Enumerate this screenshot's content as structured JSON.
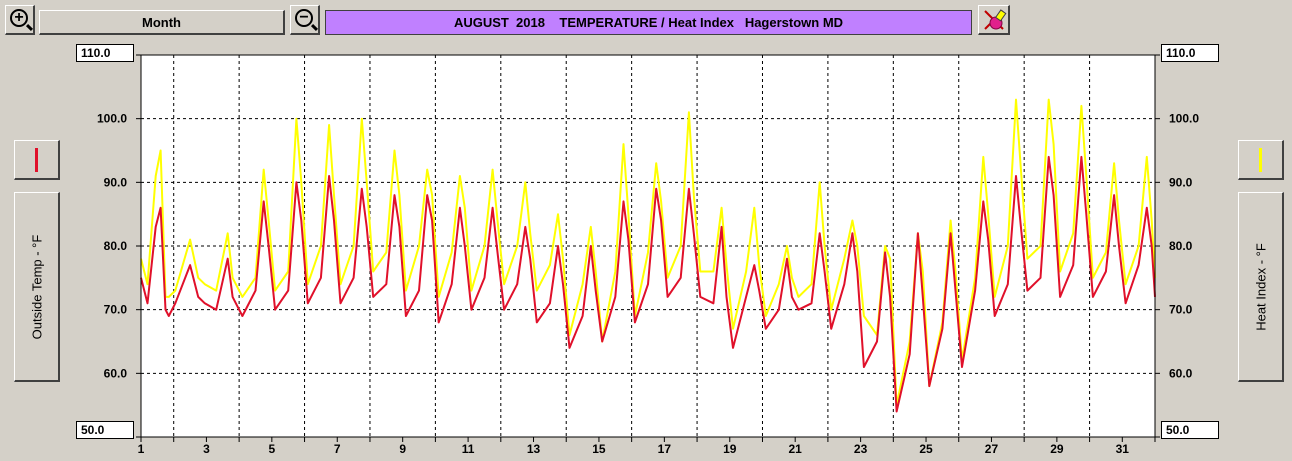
{
  "toolbar": {
    "range_label": "Month",
    "zoom_in": "+",
    "zoom_out": "−"
  },
  "title": "AUGUST  2018    TEMPERATURE / Heat Index   Hagerstown MD",
  "left_axis": {
    "label": "Outside Temp - °F",
    "legend_color": "#e0102a"
  },
  "right_axis": {
    "label": "Heat Index - °F",
    "legend_color": "#ffff00"
  },
  "ylabels": {
    "top": "110.0",
    "bottom": "50.0"
  },
  "chart_data": {
    "type": "line",
    "title": "AUGUST  2018    TEMPERATURE / Heat Index   Hagerstown MD",
    "ylabel": "Outside Temp - °F",
    "y2label": "Heat Index - °F",
    "ylim": [
      50,
      110
    ],
    "xlim": [
      1,
      32
    ],
    "y_ticks": [
      {
        "value": 110,
        "label": "110.0"
      },
      {
        "value": 100,
        "label": "100.0"
      },
      {
        "value": 90,
        "label": "90.0"
      },
      {
        "value": 80,
        "label": "80.0"
      },
      {
        "value": 70,
        "label": "70.0"
      },
      {
        "value": 60,
        "label": "60.0"
      },
      {
        "value": 50,
        "label": "50.0"
      }
    ],
    "x_tick_labels": [
      "1",
      "3",
      "5",
      "7",
      "9",
      "11",
      "13",
      "15",
      "17",
      "19",
      "21",
      "23",
      "25",
      "27",
      "29",
      "31"
    ],
    "grid": true,
    "series": [
      {
        "key": "heat",
        "color": "#ffff00",
        "x": [
          1,
          1.2,
          1.45,
          1.6,
          1.75,
          1.85,
          2.05,
          2.5,
          2.75,
          2.95,
          3.3,
          3.65,
          3.8,
          4.1,
          4.5,
          4.75,
          4.9,
          5.1,
          5.5,
          5.75,
          5.9,
          6.1,
          6.5,
          6.75,
          6.9,
          7.1,
          7.5,
          7.75,
          7.9,
          8.1,
          8.5,
          8.75,
          8.9,
          9.1,
          9.5,
          9.75,
          9.9,
          10.1,
          10.5,
          10.75,
          10.9,
          11.1,
          11.5,
          11.75,
          11.9,
          12.1,
          12.5,
          12.75,
          12.9,
          13.1,
          13.5,
          13.75,
          13.9,
          14.1,
          14.5,
          14.75,
          14.9,
          15.1,
          15.5,
          15.75,
          15.9,
          16.1,
          16.5,
          16.75,
          16.9,
          17.1,
          17.5,
          17.75,
          17.9,
          18.1,
          18.5,
          18.75,
          18.9,
          19.1,
          19.5,
          19.75,
          19.9,
          20.1,
          20.5,
          20.75,
          20.9,
          21.1,
          21.5,
          21.75,
          21.9,
          22.1,
          22.5,
          22.75,
          22.9,
          23.1,
          23.5,
          23.75,
          23.9,
          24.1,
          24.5,
          24.75,
          24.9,
          25.1,
          25.5,
          25.75,
          25.9,
          26.1,
          26.5,
          26.75,
          26.9,
          27.1,
          27.5,
          27.75,
          27.9,
          28.1,
          28.5,
          28.75,
          28.9,
          29.1,
          29.5,
          29.75,
          29.9,
          30.1,
          30.5,
          30.75,
          30.9,
          31.1,
          31.5,
          31.75,
          31.9,
          32
        ],
        "values": [
          78,
          74,
          91,
          95,
          72,
          72,
          73,
          81,
          75,
          74,
          73,
          82,
          75,
          72,
          75,
          92,
          84,
          73,
          76,
          100,
          90,
          74,
          80,
          99,
          88,
          74,
          80,
          100,
          90,
          76,
          79,
          95,
          88,
          73,
          80,
          92,
          88,
          72,
          79,
          91,
          86,
          73,
          80,
          92,
          84,
          74,
          80,
          90,
          82,
          73,
          77,
          85,
          78,
          66,
          74,
          83,
          76,
          65,
          76,
          96,
          85,
          69,
          79,
          93,
          87,
          75,
          80,
          101,
          88,
          76,
          76,
          86,
          77,
          67,
          76,
          86,
          77,
          69,
          74,
          80,
          75,
          72,
          74,
          90,
          80,
          70,
          78,
          84,
          80,
          69,
          66,
          80,
          78,
          55,
          65,
          82,
          76,
          58,
          68,
          84,
          76,
          62,
          75,
          94,
          85,
          72,
          80,
          103,
          92,
          78,
          80,
          103,
          96,
          76,
          82,
          102,
          91,
          75,
          79,
          93,
          84,
          74,
          80,
          94,
          84,
          75
        ]
      },
      {
        "key": "temp",
        "color": "#e0102a",
        "x": [
          1,
          1.2,
          1.45,
          1.6,
          1.75,
          1.85,
          2.05,
          2.5,
          2.75,
          2.95,
          3.3,
          3.65,
          3.8,
          4.1,
          4.5,
          4.75,
          4.9,
          5.1,
          5.5,
          5.75,
          5.9,
          6.1,
          6.5,
          6.75,
          6.9,
          7.1,
          7.5,
          7.75,
          7.9,
          8.1,
          8.5,
          8.75,
          8.9,
          9.1,
          9.5,
          9.75,
          9.9,
          10.1,
          10.5,
          10.75,
          10.9,
          11.1,
          11.5,
          11.75,
          11.9,
          12.1,
          12.5,
          12.75,
          12.9,
          13.1,
          13.5,
          13.75,
          13.9,
          14.1,
          14.5,
          14.75,
          14.9,
          15.1,
          15.5,
          15.75,
          15.9,
          16.1,
          16.5,
          16.75,
          16.9,
          17.1,
          17.5,
          17.75,
          17.9,
          18.1,
          18.5,
          18.75,
          18.9,
          19.1,
          19.5,
          19.75,
          19.9,
          20.1,
          20.5,
          20.75,
          20.9,
          21.1,
          21.5,
          21.75,
          21.9,
          22.1,
          22.5,
          22.75,
          22.9,
          23.1,
          23.5,
          23.75,
          23.9,
          24.1,
          24.5,
          24.75,
          24.9,
          25.1,
          25.5,
          25.75,
          25.9,
          26.1,
          26.5,
          26.75,
          26.9,
          27.1,
          27.5,
          27.75,
          27.9,
          28.1,
          28.5,
          28.75,
          28.9,
          29.1,
          29.5,
          29.75,
          29.9,
          30.1,
          30.5,
          30.75,
          30.9,
          31.1,
          31.5,
          31.75,
          31.9,
          32
        ],
        "values": [
          75,
          71,
          83,
          86,
          70,
          69,
          71,
          77,
          72,
          71,
          70,
          78,
          72,
          69,
          73,
          87,
          80,
          70,
          73,
          90,
          84,
          71,
          75,
          91,
          84,
          71,
          75,
          89,
          83,
          72,
          74,
          88,
          83,
          69,
          73,
          88,
          84,
          68,
          74,
          86,
          80,
          70,
          75,
          86,
          79,
          70,
          74,
          83,
          78,
          68,
          71,
          80,
          74,
          64,
          69,
          80,
          73,
          65,
          72,
          87,
          81,
          68,
          74,
          89,
          84,
          72,
          75,
          89,
          82,
          72,
          71,
          83,
          72,
          64,
          72,
          77,
          73,
          67,
          70,
          78,
          72,
          70,
          71,
          82,
          76,
          67,
          74,
          82,
          76,
          61,
          65,
          79,
          72,
          54,
          63,
          82,
          72,
          58,
          67,
          82,
          73,
          61,
          73,
          87,
          81,
          69,
          74,
          91,
          83,
          73,
          75,
          94,
          88,
          72,
          77,
          94,
          85,
          72,
          76,
          88,
          80,
          71,
          77,
          86,
          80,
          72
        ]
      }
    ]
  }
}
